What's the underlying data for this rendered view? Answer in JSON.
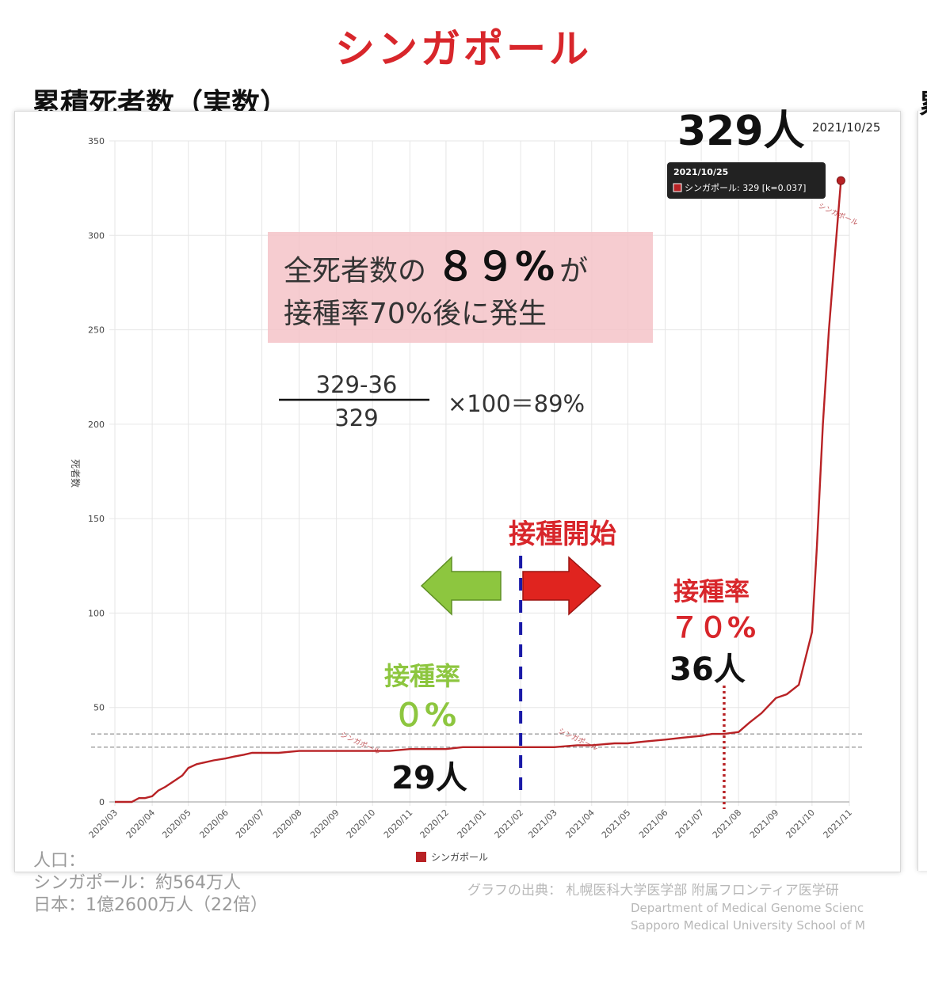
{
  "header": {
    "country": "シンガポール",
    "chart_title": "累積死者数（実数）",
    "right_edge_mark": "累"
  },
  "chart_data": {
    "type": "line",
    "title": "",
    "xlabel": "",
    "ylabel": "死者数",
    "ylim": [
      0,
      350
    ],
    "yticks": [
      0,
      50,
      100,
      150,
      200,
      250,
      300,
      350
    ],
    "x_tick_labels": [
      "2020/03",
      "2020/04",
      "2020/05",
      "2020/06",
      "2020/07",
      "2020/08",
      "2020/09",
      "2020/10",
      "2020/11",
      "2020/12",
      "2021/01",
      "2021/02",
      "2021/03",
      "2021/04",
      "2021/05",
      "2021/06",
      "2021/07",
      "2021/08",
      "2021/09",
      "2021/10",
      "2021/11"
    ],
    "grid": true,
    "legend": "bottom-center",
    "series": [
      {
        "name": "シンガポール",
        "color": "#b82225",
        "points": [
          [
            "2020/03/01",
            0
          ],
          [
            "2020/03/15",
            0
          ],
          [
            "2020/03/21",
            2
          ],
          [
            "2020/03/26",
            2
          ],
          [
            "2020/04/01",
            3
          ],
          [
            "2020/04/06",
            6
          ],
          [
            "2020/04/12",
            8
          ],
          [
            "2020/04/19",
            11
          ],
          [
            "2020/04/26",
            14
          ],
          [
            "2020/05/01",
            18
          ],
          [
            "2020/05/08",
            20
          ],
          [
            "2020/05/15",
            21
          ],
          [
            "2020/05/22",
            22
          ],
          [
            "2020/06/01",
            23
          ],
          [
            "2020/06/08",
            24
          ],
          [
            "2020/06/16",
            25
          ],
          [
            "2020/06/23",
            26
          ],
          [
            "2020/07/01",
            26
          ],
          [
            "2020/07/15",
            26
          ],
          [
            "2020/08/01",
            27
          ],
          [
            "2020/08/15",
            27
          ],
          [
            "2020/09/01",
            27
          ],
          [
            "2020/09/15",
            27
          ],
          [
            "2020/10/01",
            27
          ],
          [
            "2020/10/15",
            27
          ],
          [
            "2020/11/01",
            28
          ],
          [
            "2020/11/15",
            28
          ],
          [
            "2020/12/01",
            28
          ],
          [
            "2020/12/15",
            29
          ],
          [
            "2021/01/01",
            29
          ],
          [
            "2021/02/01",
            29
          ],
          [
            "2021/03/01",
            29
          ],
          [
            "2021/03/20",
            30
          ],
          [
            "2021/04/01",
            30
          ],
          [
            "2021/04/20",
            31
          ],
          [
            "2021/05/01",
            31
          ],
          [
            "2021/05/15",
            32
          ],
          [
            "2021/06/01",
            33
          ],
          [
            "2021/06/15",
            34
          ],
          [
            "2021/07/01",
            35
          ],
          [
            "2021/07/10",
            36
          ],
          [
            "2021/07/20",
            36
          ],
          [
            "2021/08/01",
            37
          ],
          [
            "2021/08/10",
            42
          ],
          [
            "2021/08/20",
            47
          ],
          [
            "2021/09/01",
            55
          ],
          [
            "2021/09/10",
            57
          ],
          [
            "2021/09/20",
            62
          ],
          [
            "2021/10/01",
            90
          ],
          [
            "2021/10/05",
            135
          ],
          [
            "2021/10/10",
            200
          ],
          [
            "2021/10/15",
            250
          ],
          [
            "2021/10/20",
            290
          ],
          [
            "2021/10/25",
            329
          ]
        ],
        "inline_labels": [
          "シンガポール",
          "シンガポール",
          "シンガポール"
        ]
      }
    ],
    "reference_lines": [
      {
        "y": 29,
        "color": "#7a7a7a",
        "style": "dashed"
      },
      {
        "y": 36,
        "color": "#7a7a7a",
        "style": "dashed"
      }
    ],
    "vertical_markers": [
      {
        "date": "2021/02/01",
        "label": "接種開始",
        "color": "#1a1aa8",
        "style": "dashed"
      },
      {
        "date": "2021/07/20",
        "color": "#b82225",
        "style": "dotted"
      }
    ],
    "last_point_label": "329人",
    "last_point_date": "2021/10/25",
    "tooltip": {
      "date": "2021/10/25",
      "text": "シンガポール: 329 [k=0.037]"
    },
    "legend_entries": [
      "シンガポール"
    ]
  },
  "annotations": {
    "callout_line1_prefix": "全死者数の",
    "callout_percent": "８９%",
    "callout_line1_suffix": "が",
    "callout_line2": "接種率70%後に発生",
    "fraction_numerator": "329-36",
    "fraction_denominator": "329",
    "formula_rest": "×100＝89%",
    "vaccination_start": "接種開始",
    "rate0_label": "接種率",
    "rate0_value": "０%",
    "deaths_29": "29人",
    "rate70_label": "接種率",
    "rate70_value": "７０%",
    "deaths_36": "36人",
    "arrow_left_color": "#8dc63f",
    "arrow_right_color": "#e0241f"
  },
  "footer": {
    "population_heading": "人口：",
    "population_singapore": "シンガポール：約564万人",
    "population_japan": "日本：1億2600万人（22倍）",
    "source_ja": "グラフの出典：  札幌医科大学医学部 附属フロンティア医学研",
    "source_en1": "Department of Medical Genome Scienc",
    "source_en2": "Sapporo Medical University School of M"
  }
}
